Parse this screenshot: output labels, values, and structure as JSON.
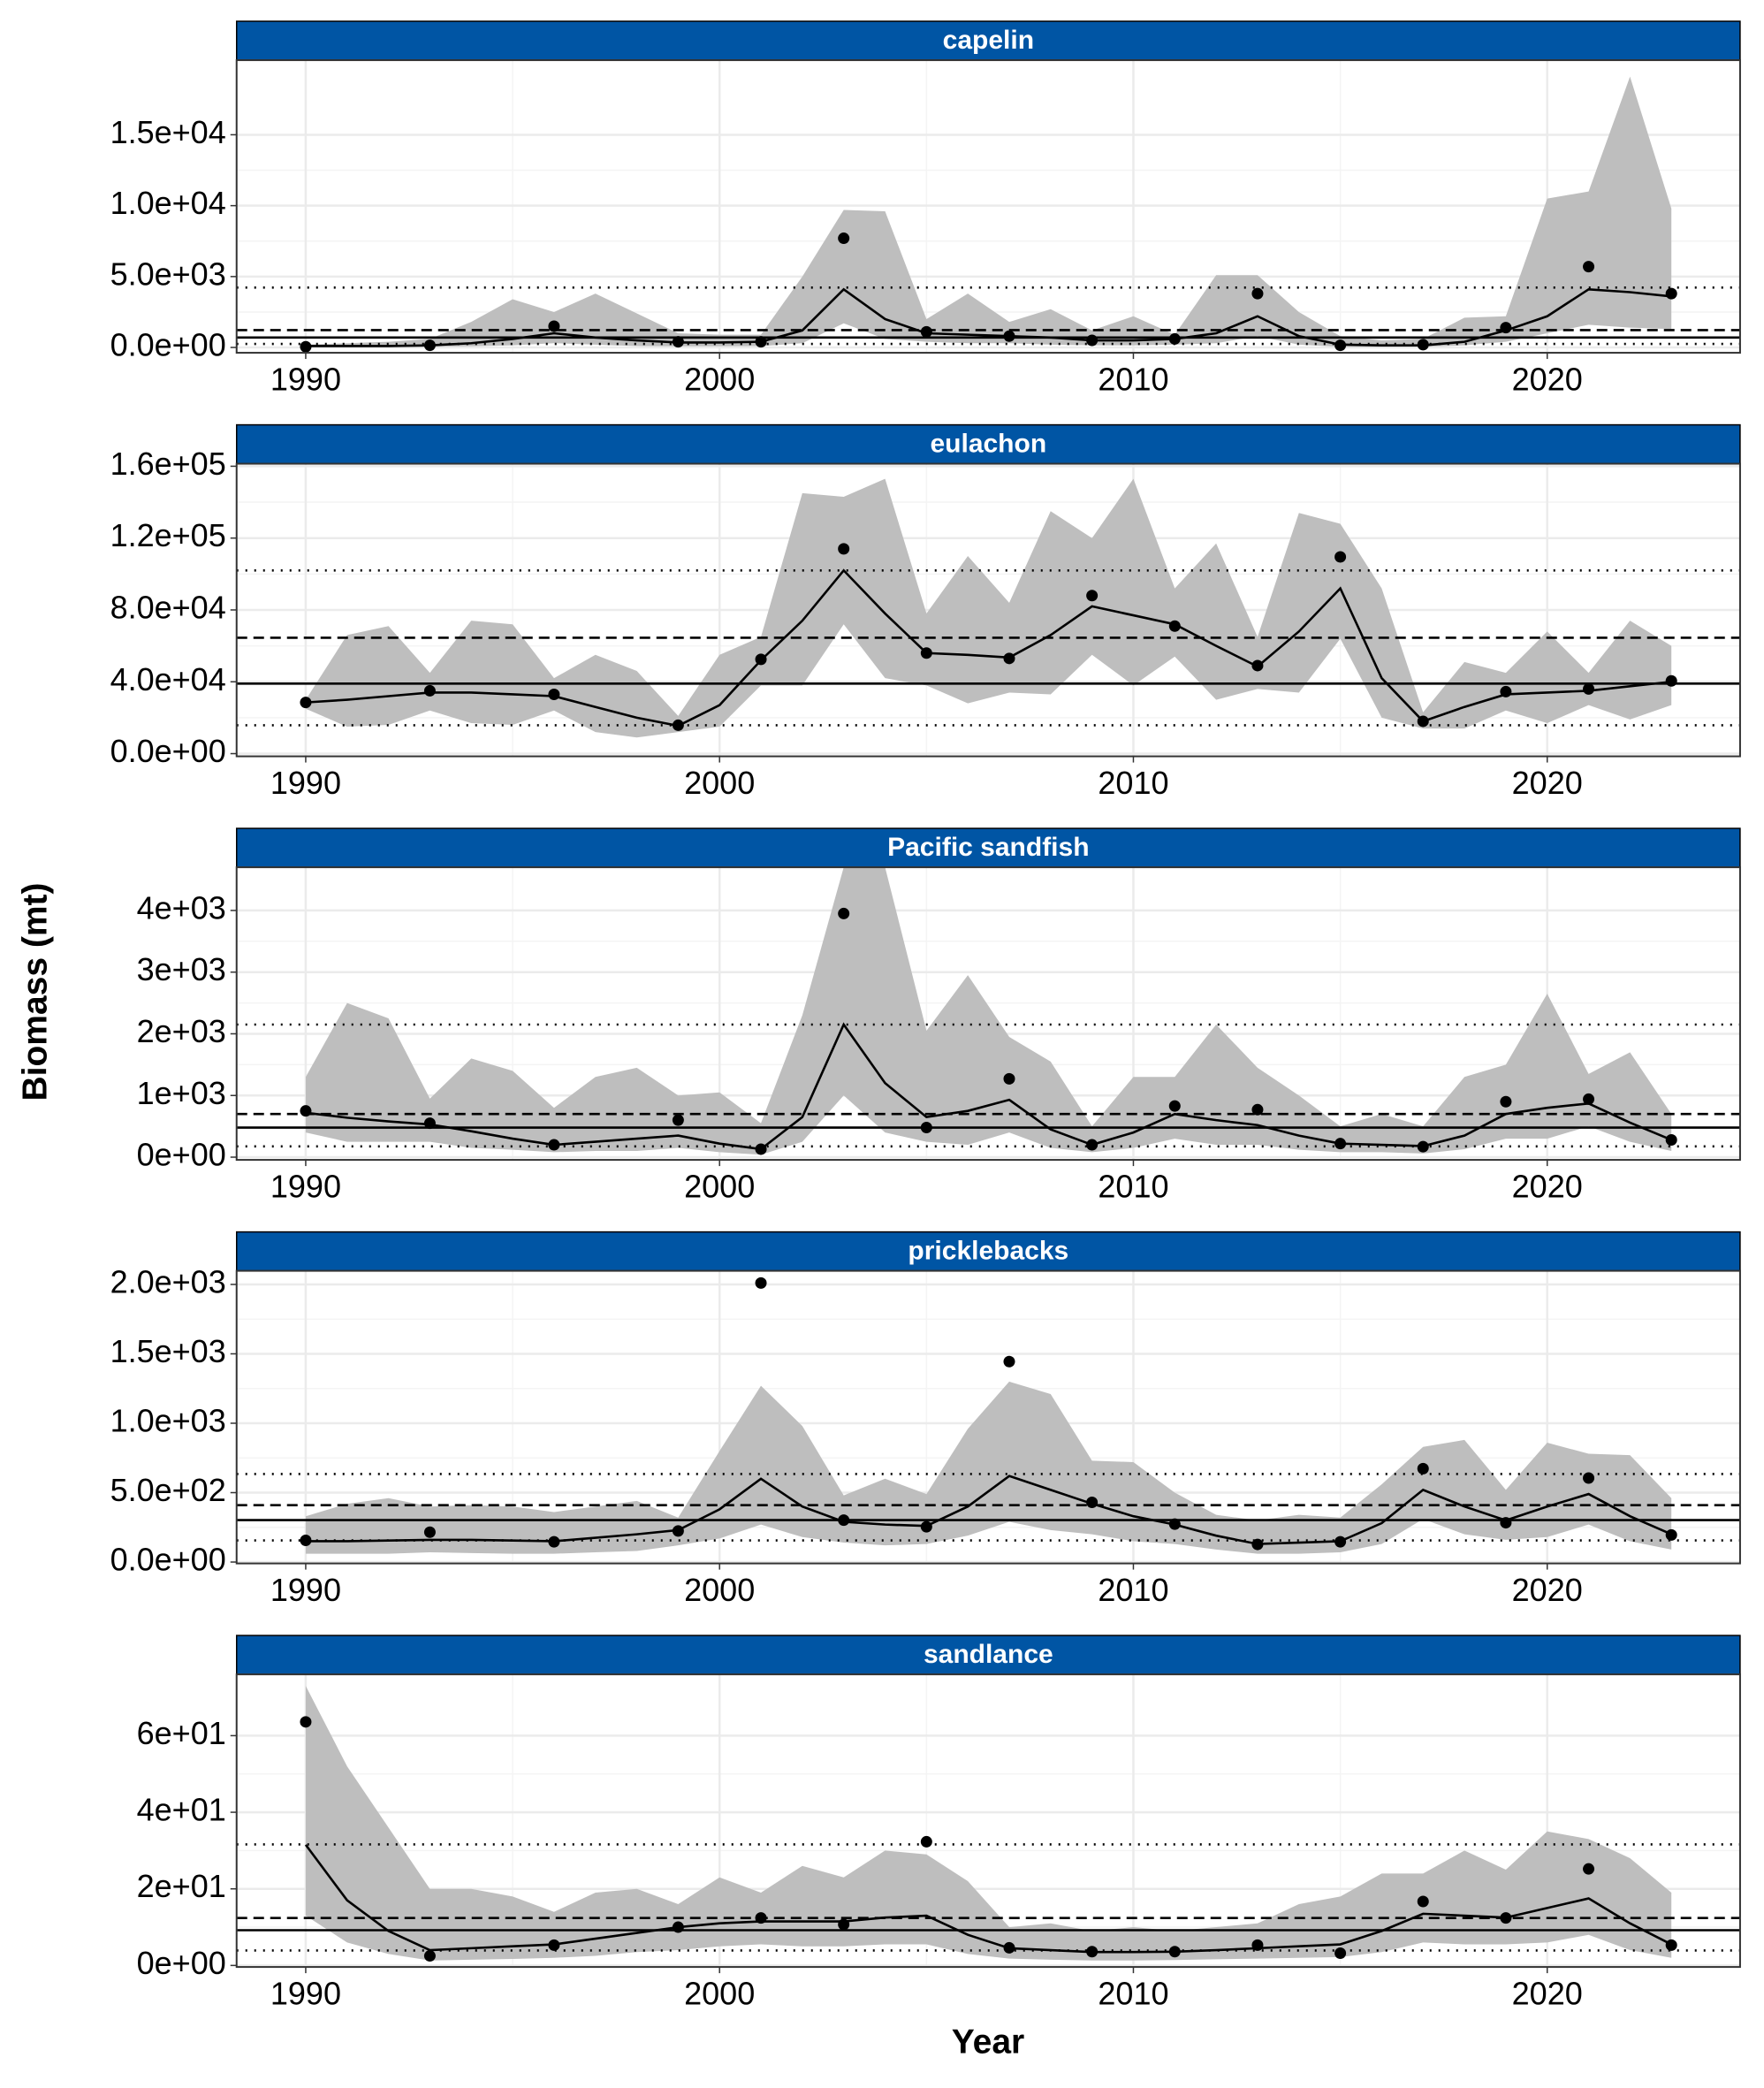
{
  "ylabel": "Biomass (mt)",
  "xlabel": "Year",
  "chart_data": [
    {
      "type": "line",
      "title": "capelin",
      "color": "#000000",
      "ribbon_color": "#bebebe",
      "xlim": [
        1988.33,
        2024.66
      ],
      "xticks": [
        1990,
        2000,
        2010,
        2020
      ],
      "ylim": [
        -375,
        20260
      ],
      "yticks": [
        {
          "value": 0,
          "label": "0.0e+00"
        },
        {
          "value": 5000,
          "label": "5.0e+03"
        },
        {
          "value": 10000,
          "label": "1.0e+04"
        },
        {
          "value": 15000,
          "label": "1.5e+04"
        }
      ],
      "x": [
        1990,
        1991,
        1992,
        1993,
        1994,
        1995,
        1996,
        1997,
        1998,
        1999,
        2000,
        2001,
        2002,
        2003,
        2004,
        2005,
        2006,
        2007,
        2008,
        2009,
        2010,
        2011,
        2012,
        2013,
        2014,
        2015,
        2016,
        2017,
        2018,
        2019,
        2020,
        2021,
        2022,
        2023
      ],
      "fit": [
        100,
        100,
        100,
        150,
        300,
        600,
        1000,
        700,
        500,
        350,
        350,
        400,
        1200,
        4100,
        2000,
        1000,
        900,
        800,
        700,
        500,
        500,
        600,
        1000,
        2200,
        800,
        200,
        150,
        150,
        400,
        1200,
        2200,
        4100,
        3900,
        3600
      ],
      "lower": [
        20,
        30,
        30,
        50,
        80,
        150,
        300,
        200,
        100,
        80,
        80,
        100,
        300,
        1700,
        600,
        400,
        300,
        300,
        200,
        150,
        150,
        200,
        300,
        800,
        200,
        50,
        40,
        50,
        150,
        400,
        1000,
        1600,
        1400,
        1300
      ],
      "upper": [
        200,
        300,
        400,
        600,
        1800,
        3400,
        2500,
        3800,
        2400,
        1000,
        900,
        900,
        5000,
        9700,
        9600,
        2000,
        3800,
        1800,
        2700,
        1200,
        2200,
        900,
        5100,
        5100,
        2500,
        800,
        500,
        600,
        2100,
        2200,
        10500,
        11000,
        19100,
        9800
      ],
      "points": {
        "x": [
          1990,
          1993,
          1996,
          1999,
          2001,
          2003,
          2005,
          2007,
          2009,
          2011,
          2013,
          2015,
          2017,
          2019,
          2021,
          2023
        ],
        "values": [
          50,
          150,
          1500,
          400,
          400,
          7700,
          1100,
          800,
          500,
          600,
          3800,
          150,
          200,
          1400,
          5700,
          3800
        ]
      },
      "hlines": [
        {
          "value": 4220,
          "style": "dotted"
        },
        {
          "value": 1220,
          "style": "dashed"
        },
        {
          "value": 700,
          "style": "solid"
        },
        {
          "value": 250,
          "style": "dotted"
        }
      ]
    },
    {
      "type": "line",
      "title": "eulachon",
      "color": "#000000",
      "ribbon_color": "#bebebe",
      "xlim": [
        1988.33,
        2024.66
      ],
      "xticks": [
        1990,
        2000,
        2010,
        2020
      ],
      "ylim": [
        -1500,
        161400
      ],
      "yticks": [
        {
          "value": 0,
          "label": "0.0e+00"
        },
        {
          "value": 40000,
          "label": "4.0e+04"
        },
        {
          "value": 80000,
          "label": "8.0e+04"
        },
        {
          "value": 120000,
          "label": "1.2e+05"
        },
        {
          "value": 160000,
          "label": "1.6e+05"
        }
      ],
      "x": [
        1990,
        1991,
        1992,
        1993,
        1994,
        1995,
        1996,
        1997,
        1998,
        1999,
        2000,
        2001,
        2002,
        2003,
        2004,
        2005,
        2006,
        2007,
        2008,
        2009,
        2010,
        2011,
        2012,
        2013,
        2014,
        2015,
        2016,
        2017,
        2018,
        2019,
        2020,
        2021,
        2022,
        2023
      ],
      "fit": [
        28500,
        30000,
        32000,
        34000,
        34000,
        33000,
        32000,
        26000,
        20000,
        15500,
        27000,
        52000,
        74000,
        102000,
        78000,
        56000,
        55000,
        53500,
        66000,
        82000,
        77000,
        72000,
        60000,
        48500,
        68000,
        92000,
        42000,
        18000,
        26000,
        33000,
        34000,
        35000,
        37500,
        40000
      ],
      "lower": [
        25000,
        15000,
        16000,
        24000,
        17000,
        16000,
        24000,
        12000,
        9000,
        12000,
        15000,
        38000,
        38000,
        72000,
        42000,
        38000,
        28000,
        34000,
        33000,
        55000,
        38000,
        54000,
        30000,
        36000,
        34000,
        64000,
        20000,
        14000,
        14000,
        24000,
        17000,
        27000,
        19000,
        27000
      ],
      "upper": [
        30000,
        66000,
        71000,
        45000,
        74000,
        72000,
        42000,
        55000,
        46000,
        21000,
        55000,
        65000,
        145000,
        143000,
        153000,
        78000,
        110000,
        84000,
        135000,
        120000,
        153000,
        92000,
        117000,
        65000,
        134000,
        128000,
        92000,
        23000,
        51000,
        45000,
        68000,
        45000,
        74000,
        60000
      ],
      "points": {
        "x": [
          1990,
          1993,
          1996,
          1999,
          2001,
          2003,
          2005,
          2007,
          2009,
          2011,
          2013,
          2015,
          2017,
          2019,
          2021,
          2023
        ],
        "values": [
          28500,
          35000,
          33000,
          15800,
          52500,
          114000,
          56000,
          53000,
          88000,
          71000,
          49000,
          109500,
          18000,
          34500,
          36000,
          40500
        ]
      },
      "hlines": [
        {
          "value": 102000,
          "style": "dotted"
        },
        {
          "value": 64500,
          "style": "dashed"
        },
        {
          "value": 39000,
          "style": "solid"
        },
        {
          "value": 15800,
          "style": "dotted"
        }
      ]
    },
    {
      "type": "line",
      "title": "Pacific sandfish",
      "color": "#000000",
      "ribbon_color": "#bebebe",
      "xlim": [
        1988.33,
        2024.66
      ],
      "xticks": [
        1990,
        2000,
        2010,
        2020
      ],
      "ylim": [
        -44,
        4700
      ],
      "yticks": [
        {
          "value": 0,
          "label": "0e+00"
        },
        {
          "value": 1000,
          "label": "1e+03"
        },
        {
          "value": 2000,
          "label": "2e+03"
        },
        {
          "value": 3000,
          "label": "3e+03"
        },
        {
          "value": 4000,
          "label": "4e+03"
        }
      ],
      "x": [
        1990,
        1991,
        1992,
        1993,
        1994,
        1995,
        1996,
        1997,
        1998,
        1999,
        2000,
        2001,
        2002,
        2003,
        2004,
        2005,
        2006,
        2007,
        2008,
        2009,
        2010,
        2011,
        2012,
        2013,
        2014,
        2015,
        2016,
        2017,
        2018,
        2019,
        2020,
        2021,
        2022,
        2023
      ],
      "fit": [
        720,
        640,
        580,
        530,
        420,
        300,
        200,
        250,
        300,
        350,
        220,
        130,
        650,
        2150,
        1200,
        650,
        750,
        930,
        450,
        200,
        400,
        700,
        600,
        520,
        350,
        220,
        200,
        180,
        350,
        700,
        800,
        870,
        560,
        280
      ],
      "lower": [
        400,
        250,
        250,
        250,
        150,
        120,
        80,
        100,
        100,
        150,
        80,
        40,
        250,
        1000,
        400,
        250,
        200,
        400,
        150,
        80,
        150,
        300,
        200,
        200,
        120,
        80,
        80,
        60,
        130,
        300,
        300,
        500,
        250,
        100
      ],
      "upper": [
        1300,
        2500,
        2250,
        950,
        1600,
        1400,
        800,
        1300,
        1450,
        1000,
        1050,
        550,
        2300,
        4700,
        4700,
        2050,
        2950,
        1950,
        1550,
        500,
        1300,
        1300,
        2150,
        1450,
        1000,
        500,
        700,
        500,
        1300,
        1500,
        2650,
        1350,
        1700,
        700
      ],
      "points": {
        "x": [
          1990,
          1993,
          1996,
          1999,
          2001,
          2003,
          2005,
          2007,
          2009,
          2011,
          2013,
          2015,
          2017,
          2019,
          2021,
          2023
        ],
        "values": [
          750,
          550,
          200,
          600,
          130,
          3950,
          480,
          1270,
          200,
          830,
          770,
          220,
          170,
          900,
          940,
          280
        ]
      },
      "hlines": [
        {
          "value": 2150,
          "style": "dotted"
        },
        {
          "value": 700,
          "style": "dashed"
        },
        {
          "value": 480,
          "style": "solid"
        },
        {
          "value": 175,
          "style": "dotted"
        }
      ]
    },
    {
      "type": "line",
      "title": "pricklebacks",
      "color": "#000000",
      "ribbon_color": "#bebebe",
      "xlim": [
        1988.33,
        2024.66
      ],
      "xticks": [
        1990,
        2000,
        2010,
        2020
      ],
      "ylim": [
        -10,
        2098
      ],
      "yticks": [
        {
          "value": 0,
          "label": "0.0e+00"
        },
        {
          "value": 500,
          "label": "5.0e+02"
        },
        {
          "value": 1000,
          "label": "1.0e+03"
        },
        {
          "value": 1500,
          "label": "1.5e+03"
        },
        {
          "value": 2000,
          "label": "2.0e+03"
        }
      ],
      "x": [
        1990,
        1991,
        1992,
        1993,
        1994,
        1995,
        1996,
        1997,
        1998,
        1999,
        2000,
        2001,
        2002,
        2003,
        2004,
        2005,
        2006,
        2007,
        2008,
        2009,
        2010,
        2011,
        2012,
        2013,
        2014,
        2015,
        2016,
        2017,
        2018,
        2019,
        2020,
        2021,
        2022,
        2023
      ],
      "fit": [
        150,
        150,
        155,
        160,
        160,
        155,
        150,
        175,
        200,
        230,
        380,
        600,
        400,
        290,
        270,
        260,
        400,
        620,
        520,
        420,
        330,
        270,
        190,
        130,
        140,
        150,
        280,
        520,
        400,
        300,
        400,
        490,
        330,
        200
      ],
      "lower": [
        60,
        60,
        60,
        70,
        65,
        60,
        60,
        70,
        80,
        120,
        170,
        270,
        180,
        140,
        120,
        130,
        190,
        290,
        230,
        200,
        150,
        130,
        90,
        60,
        60,
        70,
        130,
        310,
        200,
        160,
        180,
        270,
        150,
        90
      ],
      "upper": [
        330,
        420,
        460,
        400,
        410,
        400,
        360,
        400,
        440,
        320,
        800,
        1270,
        980,
        480,
        600,
        490,
        960,
        1300,
        1210,
        730,
        720,
        500,
        340,
        300,
        340,
        320,
        560,
        830,
        880,
        520,
        860,
        780,
        770,
        460
      ],
      "points": {
        "x": [
          1990,
          1993,
          1996,
          1999,
          2001,
          2003,
          2005,
          2007,
          2009,
          2011,
          2013,
          2015,
          2017,
          2019,
          2021,
          2023
        ],
        "values": [
          156,
          215,
          146,
          224,
          2010,
          302,
          254,
          1444,
          430,
          273,
          127,
          146,
          673,
          283,
          605,
          195
        ]
      },
      "hlines": [
        {
          "value": 634,
          "style": "dotted"
        },
        {
          "value": 410,
          "style": "dashed"
        },
        {
          "value": 302,
          "style": "solid"
        },
        {
          "value": 156,
          "style": "dotted"
        }
      ]
    },
    {
      "type": "line",
      "title": "sandlance",
      "color": "#000000",
      "ribbon_color": "#bebebe",
      "xlim": [
        1988.33,
        2024.66
      ],
      "xticks": [
        1990,
        2000,
        2010,
        2020
      ],
      "ylim": [
        -0.4,
        76
      ],
      "yticks": [
        {
          "value": 0,
          "label": "0e+00"
        },
        {
          "value": 20,
          "label": "2e+01"
        },
        {
          "value": 40,
          "label": "4e+01"
        },
        {
          "value": 60,
          "label": "6e+01"
        }
      ],
      "x": [
        1990,
        1991,
        1992,
        1993,
        1994,
        1995,
        1996,
        1997,
        1998,
        1999,
        2000,
        2001,
        2002,
        2003,
        2004,
        2005,
        2006,
        2007,
        2008,
        2009,
        2010,
        2011,
        2012,
        2013,
        2014,
        2015,
        2016,
        2017,
        2018,
        2019,
        2020,
        2021,
        2022,
        2023
      ],
      "fit": [
        31.5,
        17,
        9,
        4,
        4.5,
        5,
        5.5,
        7,
        8.5,
        10,
        11,
        11.5,
        11.5,
        11.5,
        12.5,
        13,
        8,
        4.5,
        4,
        3.5,
        3.5,
        3.6,
        4,
        4.5,
        5,
        5.5,
        9,
        13.5,
        13,
        12.5,
        15,
        17.5,
        11,
        5.5
      ],
      "lower": [
        13,
        6,
        3,
        1.3,
        1.5,
        1.7,
        2,
        2.5,
        3.5,
        4,
        5,
        5.5,
        5,
        5,
        5.5,
        5.5,
        3,
        1.8,
        1.5,
        1.3,
        1.3,
        1.4,
        1.6,
        1.8,
        2,
        2.2,
        3.5,
        6,
        5.5,
        5.5,
        6,
        8,
        4,
        2
      ],
      "upper": [
        73,
        52,
        36,
        20,
        20,
        18,
        14,
        19,
        20,
        16,
        23,
        19,
        26,
        23,
        30,
        29,
        22,
        10,
        11,
        9,
        10,
        9,
        10,
        11,
        16,
        18,
        24,
        24,
        30,
        25,
        35,
        33,
        28,
        19
      ],
      "points": {
        "x": [
          1990,
          1993,
          1996,
          1999,
          2001,
          2003,
          2005,
          2007,
          2009,
          2011,
          2013,
          2015,
          2017,
          2019,
          2021,
          2023
        ],
        "values": [
          63.6,
          2.5,
          5.3,
          10,
          12.4,
          10.7,
          32.3,
          4.6,
          3.6,
          3.6,
          5.3,
          3.2,
          16.7,
          12.4,
          25.2,
          5.3
        ]
      },
      "hlines": [
        {
          "value": 31.6,
          "style": "dotted"
        },
        {
          "value": 12.4,
          "style": "dashed"
        },
        {
          "value": 9.2,
          "style": "solid"
        },
        {
          "value": 3.9,
          "style": "dotted"
        }
      ]
    }
  ]
}
